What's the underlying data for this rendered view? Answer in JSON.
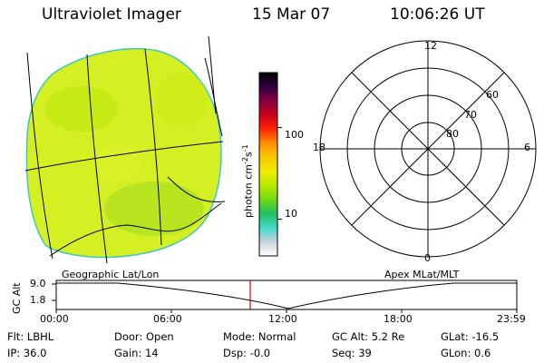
{
  "header": {
    "instrument": "Ultraviolet Imager",
    "date": "15 Mar 07",
    "time": "10:06:26 UT"
  },
  "colorbar": {
    "unit_label": "photon cm",
    "exp1": "-2",
    "middle": "s",
    "exp2": "-1",
    "ticks": [
      {
        "label": "100",
        "value": 100
      },
      {
        "label": "10",
        "value": 10
      }
    ],
    "colors": [
      "#ffffff",
      "#c8d4dc",
      "#40d8c8",
      "#22c060",
      "#70dc10",
      "#b8e800",
      "#f0ec00",
      "#f8c800",
      "#ff8c00",
      "#ff2200",
      "#c80020",
      "#8a0040",
      "#300040",
      "#000000"
    ]
  },
  "image": {
    "fill": "#d4f022",
    "overlay_label": "Geographic Lat/Lon"
  },
  "polar_grid": {
    "overlay_label": "Apex MLat/MLT",
    "mlt_labels": [
      {
        "label": "12",
        "position": "top"
      },
      {
        "label": "6",
        "position": "right"
      },
      {
        "label": "0",
        "position": "bottom"
      },
      {
        "label": "18",
        "position": "left"
      }
    ],
    "lat_labels": [
      "60",
      "70",
      "80"
    ]
  },
  "altitude_plot": {
    "ylabel": "GC Alt",
    "yticks": [
      "9.0",
      "1.8"
    ],
    "xticks": [
      "00:00",
      "06:00",
      "12:00",
      "18:00",
      "23:59"
    ],
    "current_time_hours": 10.11,
    "marker_color": "#d00000"
  },
  "info": {
    "filter": {
      "label": "Flt:",
      "value": "LBHL"
    },
    "door": {
      "label": "Door:",
      "value": "Open"
    },
    "mode": {
      "label": "Mode:",
      "value": "Normal"
    },
    "gcalt": {
      "label": "GC Alt:",
      "value": "5.2 Re"
    },
    "glat": {
      "label": "GLat:",
      "value": "-16.5"
    },
    "ip": {
      "label": "IP:",
      "value": "36.0"
    },
    "gain": {
      "label": "Gain:",
      "value": "14"
    },
    "dsp": {
      "label": "Dsp:",
      "value": "-0.0"
    },
    "seq": {
      "label": "Seq:",
      "value": "39"
    },
    "glon": {
      "label": "GLon:",
      "value": "0.6"
    }
  }
}
